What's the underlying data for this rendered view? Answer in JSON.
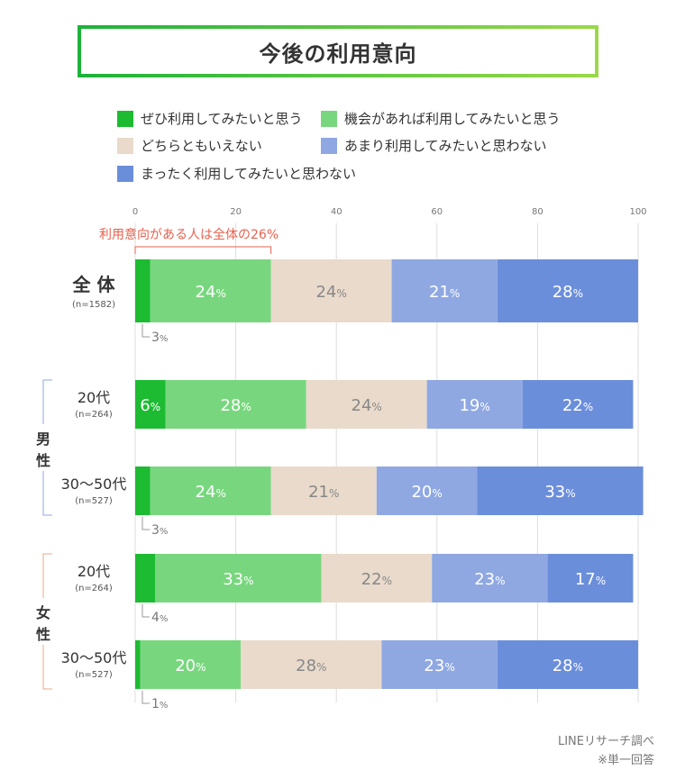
{
  "title": "今後の利用意向",
  "colors": {
    "definitely": "#1dbb32",
    "would_if": "#78d77e",
    "neutral": "#e9dacb",
    "not_much": "#8fa8e2",
    "not_at_all": "#6b8edb",
    "grid": "#dddddd",
    "annotation": "#e8614e",
    "male_bracket": "#8fa8e2",
    "female_bracket": "#e9a98a"
  },
  "legend": [
    {
      "label": "ぜひ利用してみたいと思う",
      "color": "#1dbb32"
    },
    {
      "label": "機会があれば利用してみたいと思う",
      "color": "#78d77e"
    },
    {
      "label": "どちらともいえない",
      "color": "#e9dacb"
    },
    {
      "label": "あまり利用してみたいと思わない",
      "color": "#8fa8e2"
    },
    {
      "label": "まったく利用してみたいと思わない",
      "color": "#6b8edb"
    }
  ],
  "annotation": "利用意向がある人は全体の26%",
  "footer": {
    "source": "LINEリサーチ調べ",
    "note": "※単一回答"
  },
  "chart_data": {
    "type": "bar",
    "orientation": "horizontal",
    "stacked": true,
    "x_ticks": [
      "0",
      "20",
      "40",
      "60",
      "80",
      "100"
    ],
    "xlim": [
      0,
      100
    ],
    "unit": "%",
    "series_names": [
      "ぜひ利用してみたいと思う",
      "機会があれば利用してみたいと思う",
      "どちらともいえない",
      "あまり利用してみたいと思わない",
      "まったく利用してみたいと思わない"
    ],
    "groups": [
      {
        "label": "",
        "side": ""
      },
      {
        "label": "男\n性",
        "side": "male"
      },
      {
        "label": "女\n性",
        "side": "female"
      }
    ],
    "rows": [
      {
        "label": "全 体",
        "n": "(n=1582)",
        "group": "",
        "values": [
          3,
          24,
          24,
          21,
          28
        ]
      },
      {
        "label": "20代",
        "n": "(n=264)",
        "group": "男性",
        "values": [
          6,
          28,
          24,
          19,
          22
        ]
      },
      {
        "label": "30〜50代",
        "n": "(n=527)",
        "group": "男性",
        "values": [
          3,
          24,
          21,
          20,
          33
        ]
      },
      {
        "label": "20代",
        "n": "(n=264)",
        "group": "女性",
        "values": [
          4,
          33,
          22,
          23,
          17
        ]
      },
      {
        "label": "30〜50代",
        "n": "(n=527)",
        "group": "女性",
        "values": [
          1,
          20,
          28,
          23,
          28
        ]
      }
    ],
    "group_labels": {
      "male": [
        "男",
        "性"
      ],
      "female": [
        "女",
        "性"
      ]
    }
  }
}
